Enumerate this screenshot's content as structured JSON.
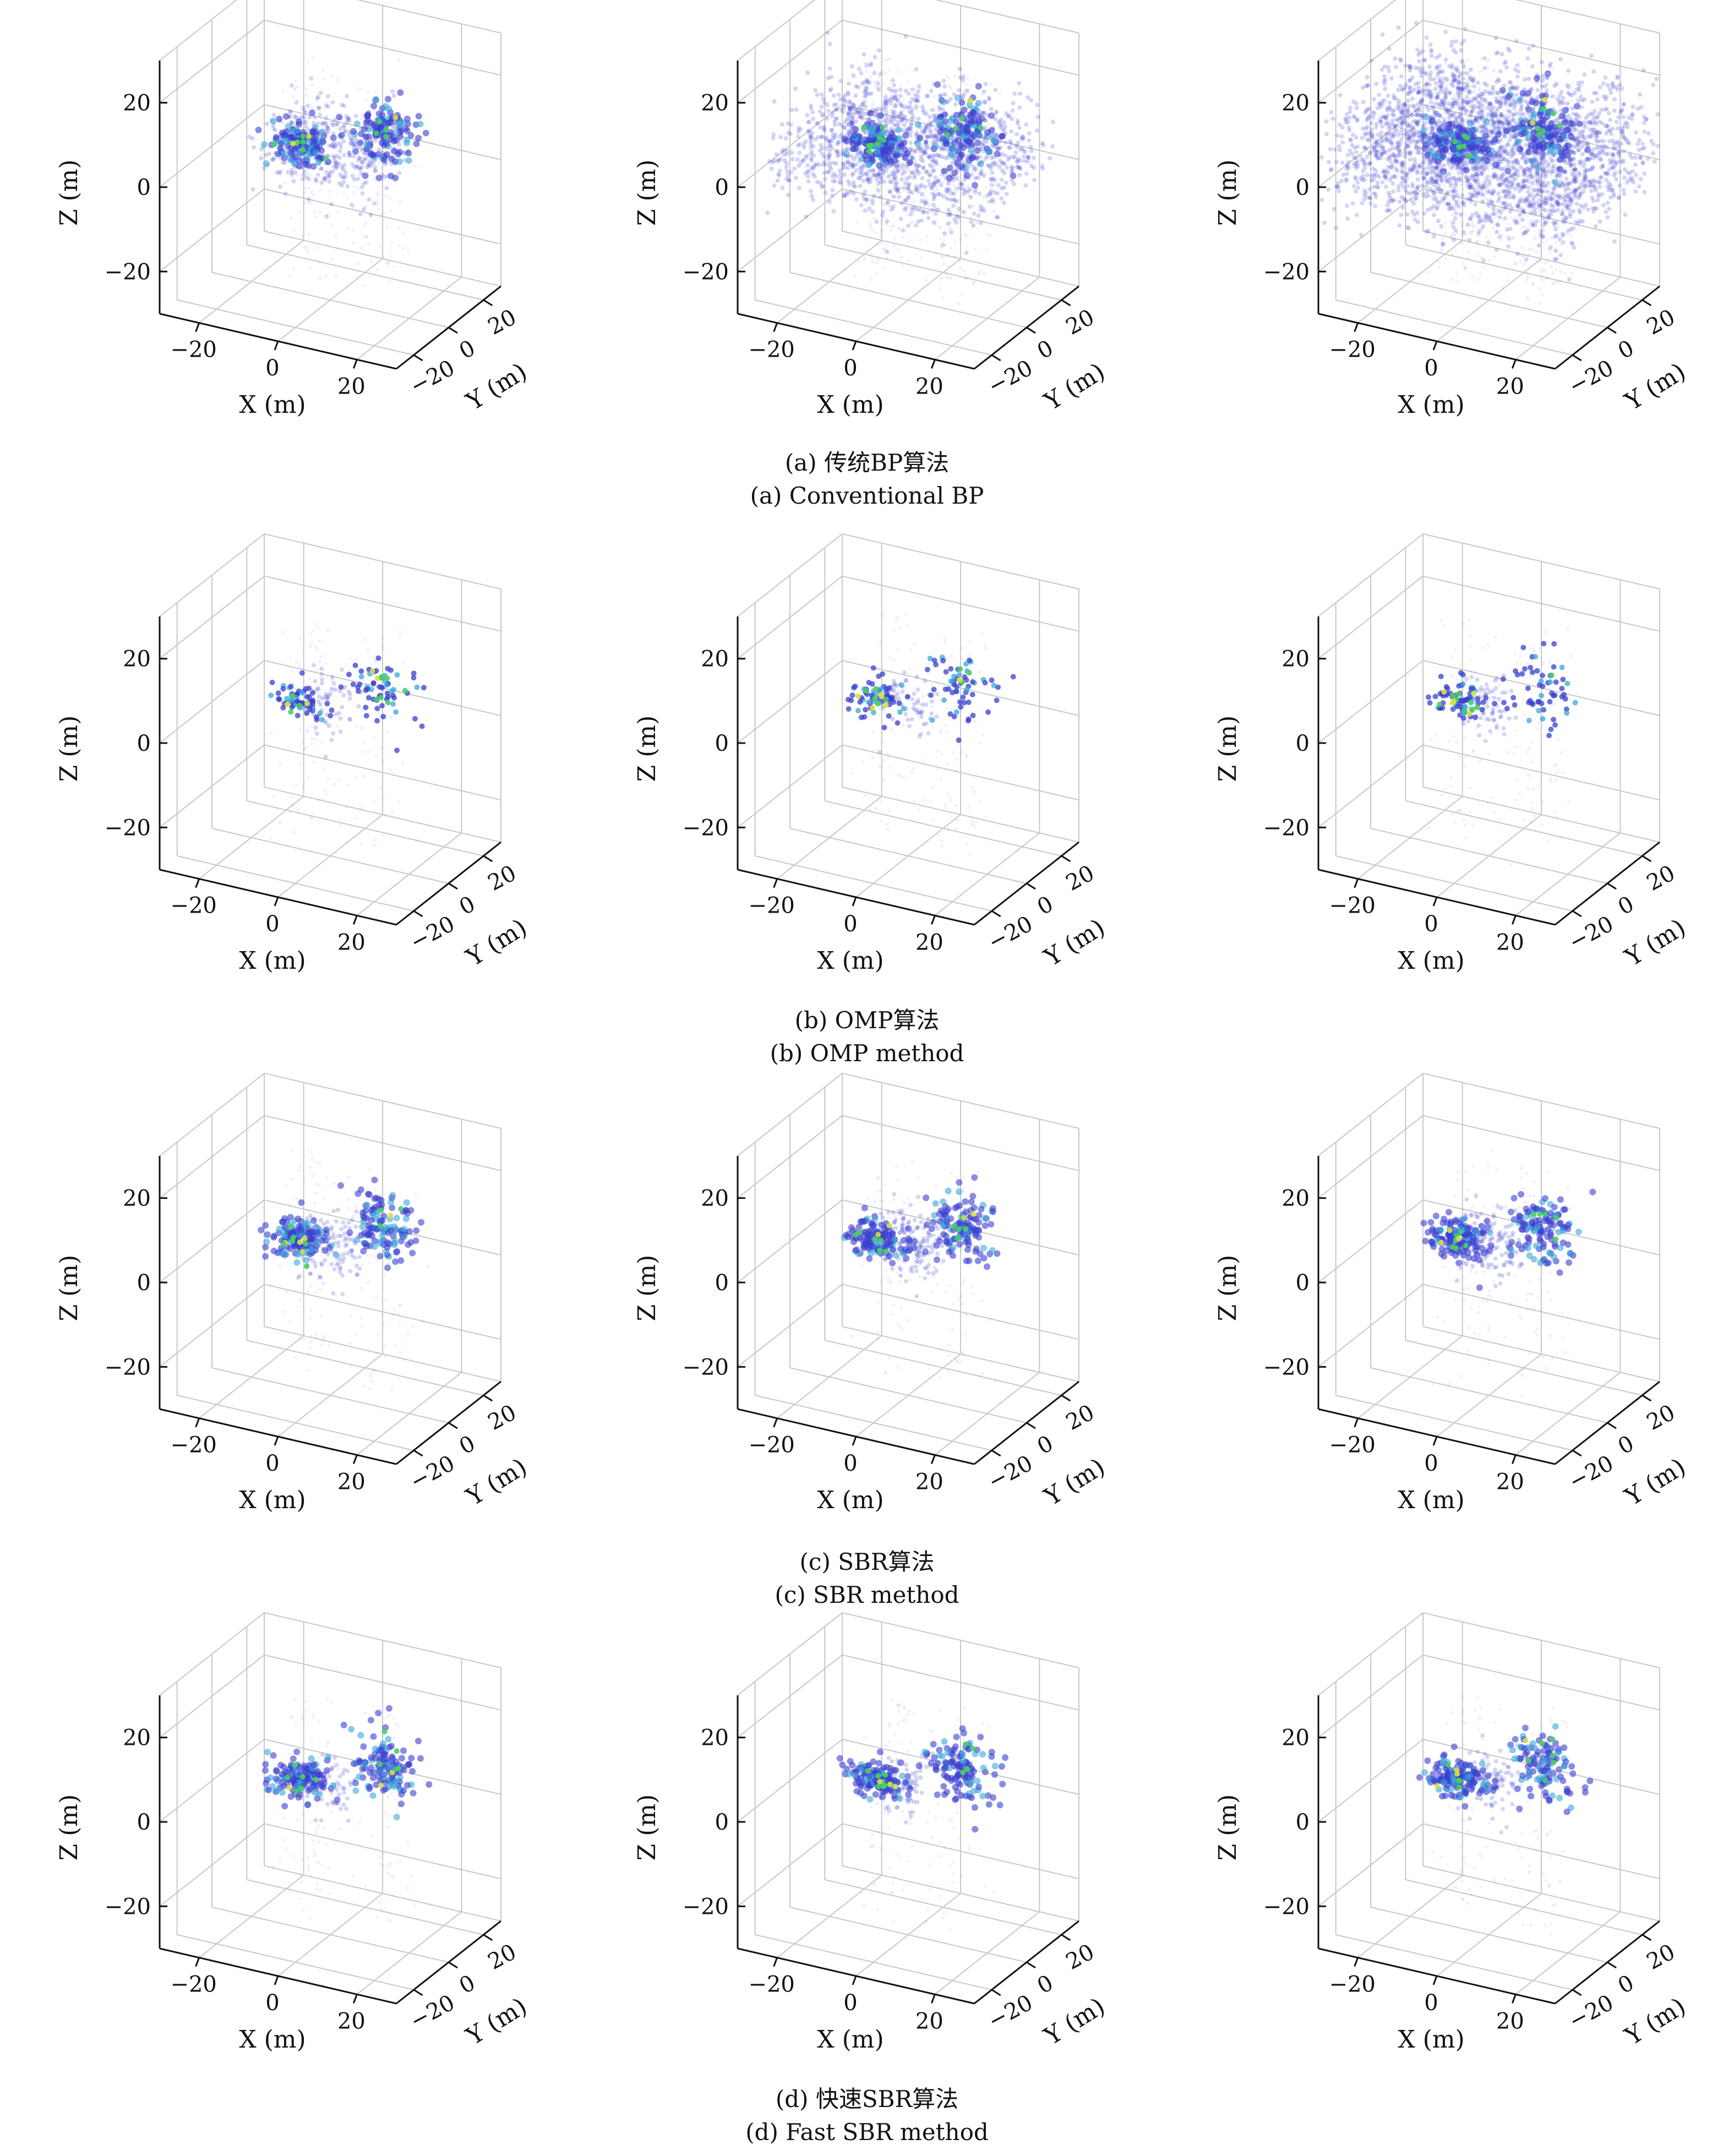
{
  "figure": {
    "rows": [
      {
        "caption_cn": "(a) 传统BP算法",
        "caption_en": "(a) Conventional BP"
      },
      {
        "caption_cn": "(b) OMP算法",
        "caption_en": "(b) OMP method"
      },
      {
        "caption_cn": "(c) SBR算法",
        "caption_en": "(c) SBR method"
      },
      {
        "caption_cn": "(d) 快速SBR算法",
        "caption_en": "(d) Fast SBR method"
      }
    ]
  },
  "chart_data": {
    "type": "scatter",
    "subtype": "3d-point-cloud",
    "grid": true,
    "axes": {
      "xlabel": "X (m)",
      "ylabel": "Y (m)",
      "zlabel": "Z (m)",
      "xticks": [
        "−20",
        "0",
        "20"
      ],
      "yticks": [
        "−20",
        "0",
        "20"
      ],
      "zticks": [
        "−20",
        "0",
        "20"
      ],
      "xlim": [
        -30,
        30
      ],
      "ylim": [
        -30,
        30
      ],
      "zlim": [
        -30,
        30
      ]
    },
    "colors": {
      "low": "#3a3fd0",
      "mid": "#3aa8d8",
      "high": "#48d060",
      "peak": "#d8e040",
      "faint": "#8f8fe0"
    },
    "panels_per_row": 3,
    "rows": [
      {
        "method": "Conventional BP",
        "spread": [
          0.55,
          0.95,
          1.25
        ],
        "density": [
          0.8,
          1.6,
          2.4
        ],
        "sparse": false
      },
      {
        "method": "OMP",
        "spread": [
          0.2,
          0.2,
          0.2
        ],
        "density": [
          0.35,
          0.35,
          0.35
        ],
        "sparse": true
      },
      {
        "method": "SBR",
        "spread": [
          0.25,
          0.25,
          0.25
        ],
        "density": [
          0.6,
          0.6,
          0.6
        ],
        "sparse": false
      },
      {
        "method": "Fast SBR",
        "spread": [
          0.22,
          0.22,
          0.22
        ],
        "density": [
          0.35,
          0.4,
          0.5
        ],
        "sparse": false
      }
    ]
  }
}
